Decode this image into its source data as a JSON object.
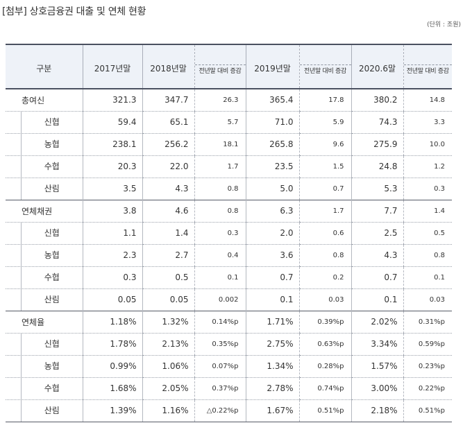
{
  "title": "[첨부] 상호금융권 대출 및 연체 현황",
  "unit": "(단위 : 조원)",
  "header": {
    "category": "구분",
    "years": [
      "2017년말",
      "2018년말",
      "2019년말",
      "2020.6말"
    ],
    "change_label": "전년말 대비 증감"
  },
  "rows": [
    {
      "label": "총여신",
      "level": "main",
      "v2017": "321.3",
      "v2018": "347.7",
      "c2018": "26.3",
      "v2019": "365.4",
      "c2019": "17.8",
      "v2020": "380.2",
      "c2020": "14.8"
    },
    {
      "label": "신협",
      "level": "sub",
      "v2017": "59.4",
      "v2018": "65.1",
      "c2018": "5.7",
      "v2019": "71.0",
      "c2019": "5.9",
      "v2020": "74.3",
      "c2020": "3.3"
    },
    {
      "label": "농협",
      "level": "sub",
      "v2017": "238.1",
      "v2018": "256.2",
      "c2018": "18.1",
      "v2019": "265.8",
      "c2019": "9.6",
      "v2020": "275.9",
      "c2020": "10.0"
    },
    {
      "label": "수협",
      "level": "sub",
      "v2017": "20.3",
      "v2018": "22.0",
      "c2018": "1.7",
      "v2019": "23.5",
      "c2019": "1.5",
      "v2020": "24.8",
      "c2020": "1.2"
    },
    {
      "label": "산림",
      "level": "sub",
      "v2017": "3.5",
      "v2018": "4.3",
      "c2018": "0.8",
      "v2019": "5.0",
      "c2019": "0.7",
      "v2020": "5.3",
      "c2020": "0.3"
    },
    {
      "label": "연체채권",
      "level": "main",
      "v2017": "3.8",
      "v2018": "4.6",
      "c2018": "0.8",
      "v2019": "6.3",
      "c2019": "1.7",
      "v2020": "7.7",
      "c2020": "1.4"
    },
    {
      "label": "신협",
      "level": "sub",
      "v2017": "1.1",
      "v2018": "1.4",
      "c2018": "0.3",
      "v2019": "2.0",
      "c2019": "0.6",
      "v2020": "2.5",
      "c2020": "0.5"
    },
    {
      "label": "농협",
      "level": "sub",
      "v2017": "2.3",
      "v2018": "2.7",
      "c2018": "0.4",
      "v2019": "3.6",
      "c2019": "0.8",
      "v2020": "4.3",
      "c2020": "0.8"
    },
    {
      "label": "수협",
      "level": "sub",
      "v2017": "0.3",
      "v2018": "0.5",
      "c2018": "0.1",
      "v2019": "0.7",
      "c2019": "0.2",
      "v2020": "0.7",
      "c2020": "0.1"
    },
    {
      "label": "산림",
      "level": "sub",
      "v2017": "0.05",
      "v2018": "0.05",
      "c2018": "0.002",
      "v2019": "0.1",
      "c2019": "0.03",
      "v2020": "0.1",
      "c2020": "0.03"
    },
    {
      "label": "연체율",
      "level": "main",
      "v2017": "1.18%",
      "v2018": "1.32%",
      "c2018": "0.14%p",
      "v2019": "1.71%",
      "c2019": "0.39%p",
      "v2020": "2.02%",
      "c2020": "0.31%p"
    },
    {
      "label": "신협",
      "level": "sub",
      "v2017": "1.78%",
      "v2018": "2.13%",
      "c2018": "0.35%p",
      "v2019": "2.75%",
      "c2019": "0.63%p",
      "v2020": "3.34%",
      "c2020": "0.59%p"
    },
    {
      "label": "농협",
      "level": "sub",
      "v2017": "0.99%",
      "v2018": "1.06%",
      "c2018": "0.07%p",
      "v2019": "1.34%",
      "c2019": "0.28%p",
      "v2020": "1.57%",
      "c2020": "0.23%p"
    },
    {
      "label": "수협",
      "level": "sub",
      "v2017": "1.68%",
      "v2018": "2.05%",
      "c2018": "0.37%p",
      "v2019": "2.78%",
      "c2019": "0.74%p",
      "v2020": "3.00%",
      "c2020": "0.22%p"
    },
    {
      "label": "산림",
      "level": "sub",
      "v2017": "1.39%",
      "v2018": "1.16%",
      "c2018": "△0.22%p",
      "v2019": "1.67%",
      "c2019": "0.51%p",
      "v2020": "2.18%",
      "c2020": "0.51%p"
    }
  ]
}
